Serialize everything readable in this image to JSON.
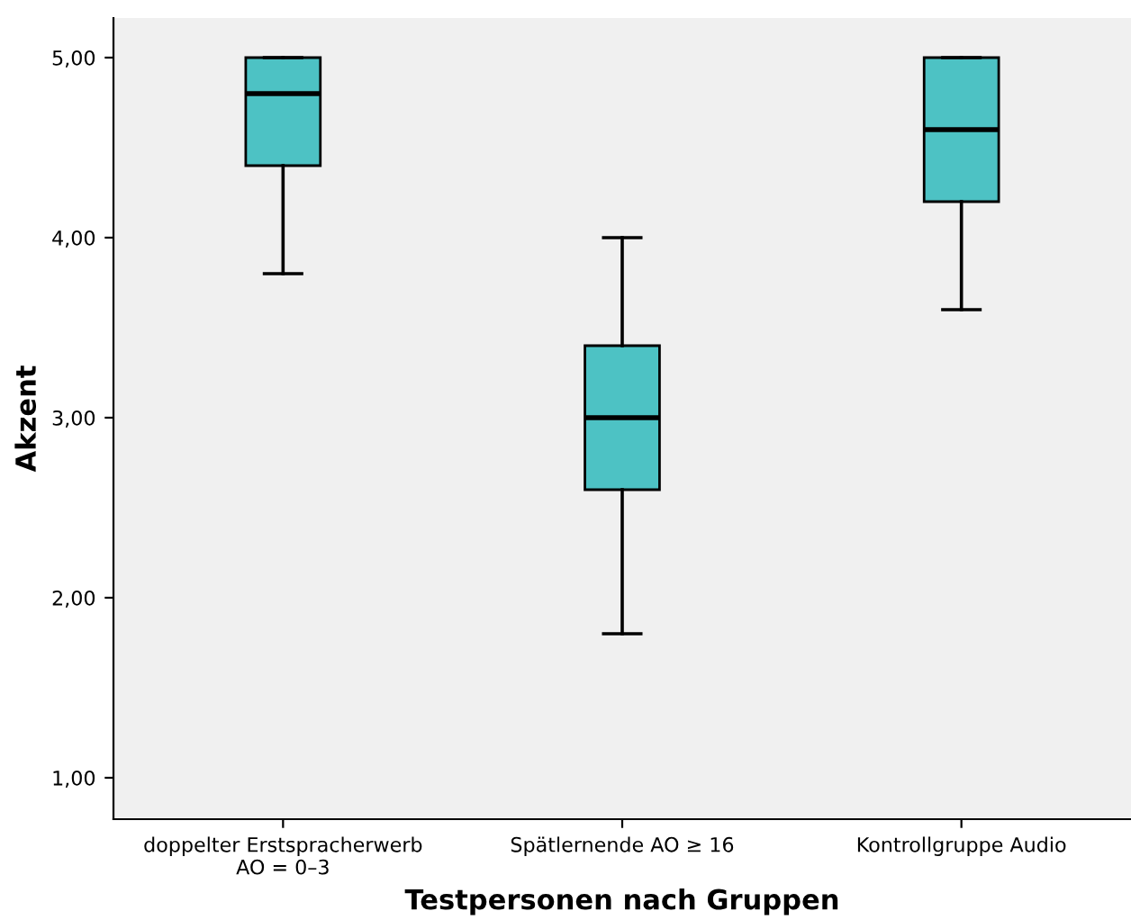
{
  "chart_data": {
    "type": "box",
    "xlabel": "Testpersonen nach Gruppen",
    "ylabel": "Akzent",
    "categories": [
      "doppelter Erstspracherwerb\nAO = 0–3",
      "Spätlernende AO ≥ 16",
      "Kontrollgruppe Audio"
    ],
    "boxes": [
      {
        "low": 3.8,
        "q1": 4.4,
        "median": 4.8,
        "q3": 5.0,
        "high": 5.0
      },
      {
        "low": 1.8,
        "q1": 2.6,
        "median": 3.0,
        "q3": 3.4,
        "high": 4.0
      },
      {
        "low": 3.6,
        "q1": 4.2,
        "median": 4.6,
        "q3": 5.0,
        "high": 5.0
      }
    ],
    "color": "#4dc2c4",
    "ylim": [
      0.77,
      5.22
    ],
    "yticks": [
      {
        "value": 1,
        "label": "1,00"
      },
      {
        "value": 2,
        "label": "2,00"
      },
      {
        "value": 3,
        "label": "3,00"
      },
      {
        "value": 4,
        "label": "4,00"
      },
      {
        "value": 5,
        "label": "5,00"
      }
    ],
    "grid": false,
    "legend": false
  }
}
